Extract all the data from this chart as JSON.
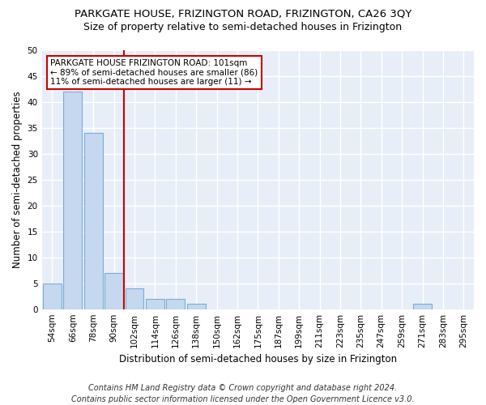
{
  "title": "PARKGATE HOUSE, FRIZINGTON ROAD, FRIZINGTON, CA26 3QY",
  "subtitle": "Size of property relative to semi-detached houses in Frizington",
  "xlabel": "Distribution of semi-detached houses by size in Frizington",
  "ylabel": "Number of semi-detached properties",
  "categories": [
    "54sqm",
    "66sqm",
    "78sqm",
    "90sqm",
    "102sqm",
    "114sqm",
    "126sqm",
    "138sqm",
    "150sqm",
    "162sqm",
    "175sqm",
    "187sqm",
    "199sqm",
    "211sqm",
    "223sqm",
    "235sqm",
    "247sqm",
    "259sqm",
    "271sqm",
    "283sqm",
    "295sqm"
  ],
  "values": [
    5,
    42,
    34,
    7,
    4,
    2,
    2,
    1,
    0,
    0,
    0,
    0,
    0,
    0,
    0,
    0,
    0,
    0,
    1,
    0,
    0
  ],
  "bar_color": "#c5d8f0",
  "bar_edge_color": "#7aadd4",
  "property_line_color": "#cc0000",
  "ylim": [
    0,
    50
  ],
  "yticks": [
    0,
    5,
    10,
    15,
    20,
    25,
    30,
    35,
    40,
    45,
    50
  ],
  "annotation_text": "PARKGATE HOUSE FRIZINGTON ROAD: 101sqm\n← 89% of semi-detached houses are smaller (86)\n11% of semi-detached houses are larger (11) →",
  "annotation_box_color": "#cc0000",
  "footer": "Contains HM Land Registry data © Crown copyright and database right 2024.\nContains public sector information licensed under the Open Government Licence v3.0.",
  "fig_background_color": "#ffffff",
  "plot_background_color": "#e8eef7",
  "grid_color": "#ffffff",
  "title_fontsize": 9.5,
  "subtitle_fontsize": 9,
  "axis_label_fontsize": 8.5,
  "tick_fontsize": 7.5,
  "footer_fontsize": 7,
  "annotation_fontsize": 7.5
}
